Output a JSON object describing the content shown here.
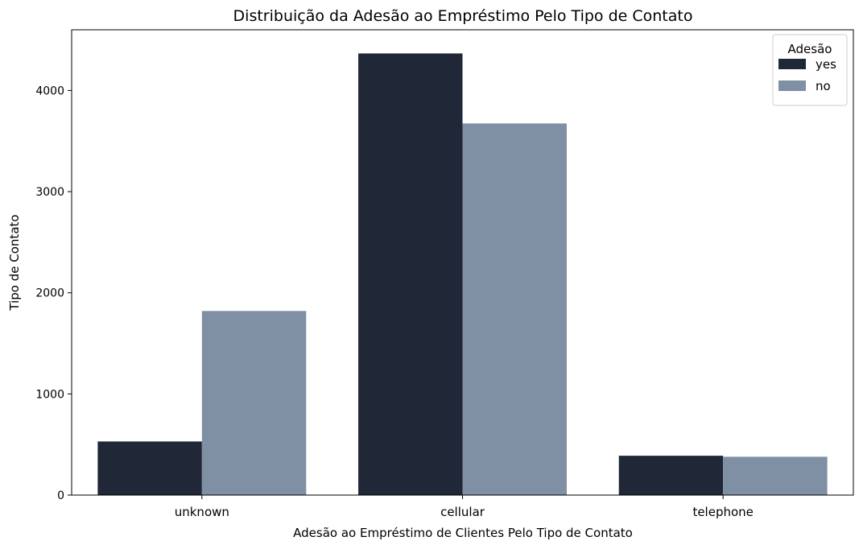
{
  "chart_data": {
    "type": "bar",
    "title": "Distribuição da Adesão ao Empréstimo Pelo Tipo de Contato",
    "xlabel": "Adesão ao Empréstimo de Clientes Pelo Tipo de Contato",
    "ylabel": "Tipo de Contato",
    "categories": [
      "unknown",
      "cellular",
      "telephone"
    ],
    "series": [
      {
        "name": "yes",
        "values": [
          530,
          4366,
          389
        ],
        "color": "#202737"
      },
      {
        "name": "no",
        "values": [
          1820,
          3674,
          379
        ],
        "color": "#7f8fa4"
      }
    ],
    "ylim": [
      0,
      4600
    ],
    "yticks": [
      0,
      1000,
      2000,
      3000,
      4000
    ],
    "legend": {
      "title": "Adesão",
      "position": "top-right"
    },
    "grid": false
  }
}
